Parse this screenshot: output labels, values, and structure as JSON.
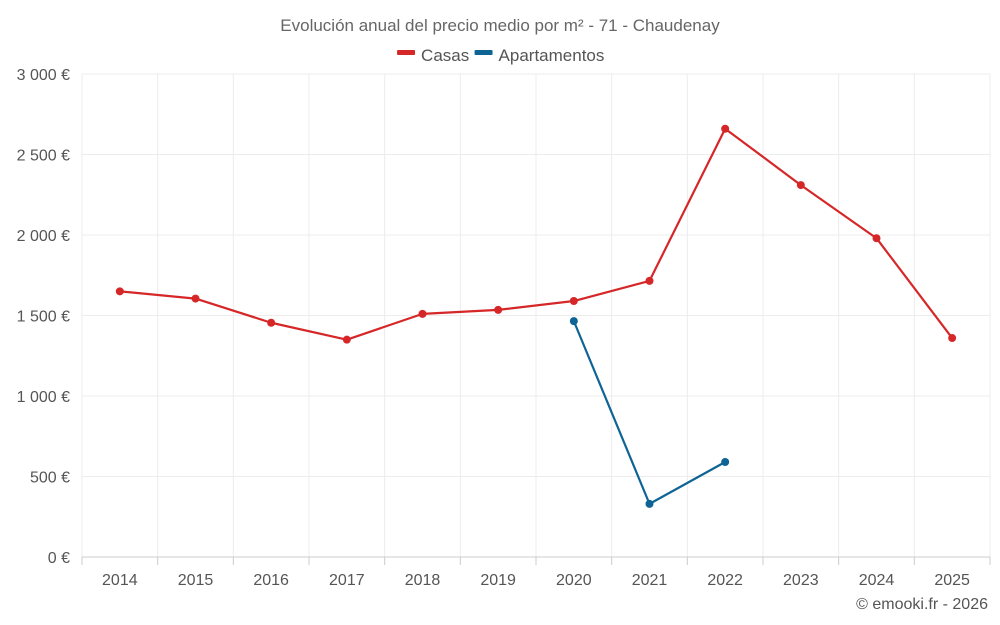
{
  "chart_data": {
    "type": "line",
    "title": "Evolución anual del precio medio por m² - 71 - Chaudenay",
    "categories": [
      "2014",
      "2015",
      "2016",
      "2017",
      "2018",
      "2019",
      "2020",
      "2021",
      "2022",
      "2023",
      "2024",
      "2025"
    ],
    "series": [
      {
        "name": "Casas",
        "color": "#d62728",
        "values": [
          1650,
          1605,
          1455,
          1350,
          1510,
          1535,
          1590,
          1715,
          2660,
          2310,
          1980,
          1360
        ]
      },
      {
        "name": "Apartamentos",
        "color": "#0f6496",
        "values": [
          null,
          null,
          null,
          null,
          null,
          null,
          1465,
          330,
          590,
          null,
          null,
          null
        ]
      }
    ],
    "ylim": [
      0,
      3000
    ],
    "yticks": [
      0,
      500,
      1000,
      1500,
      2000,
      2500,
      3000
    ],
    "ytick_labels": [
      "0 €",
      "500 €",
      "1 000 €",
      "1 500 €",
      "2 000 €",
      "2 500 €",
      "3 000 €"
    ],
    "grid": true,
    "legend_position": "top-center",
    "credit": "© emooki.fr - 2026"
  }
}
